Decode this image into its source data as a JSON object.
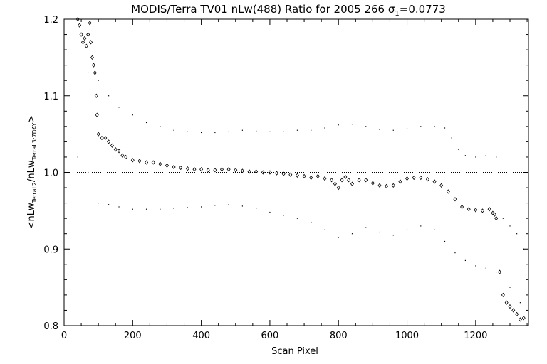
{
  "chart_data": {
    "type": "scatter",
    "title": "MODIS/Terra TV01 nLw(488) Ratio for 2005 266 σ",
    "title_subscript": "1",
    "title_suffix": "=0.0773",
    "xlabel": "Scan Pixel",
    "ylabel": {
      "open": "<",
      "nlw": "nLw",
      "sub1": "TerraL2",
      "slash": "/",
      "sub2": "TerraL3:7DAY",
      "close": ">"
    },
    "xlim": [
      0,
      1354
    ],
    "ylim": [
      0.8,
      1.2
    ],
    "xticks": [
      "0",
      "200",
      "400",
      "600",
      "800",
      "1000",
      "1200"
    ],
    "xtick_values": [
      0,
      200,
      400,
      600,
      800,
      1000,
      1200
    ],
    "yticks": [
      "0.8",
      "0.9",
      "1.0",
      "1.1",
      "1.2"
    ],
    "ytick_values": [
      0.8,
      0.9,
      1.0,
      1.1,
      1.2
    ],
    "reference_line": 1.0,
    "grid": false,
    "series": [
      {
        "style": "diamond",
        "points": [
          [
            40,
            1.2
          ],
          [
            45,
            1.192
          ],
          [
            50,
            1.18
          ],
          [
            55,
            1.17
          ],
          [
            60,
            1.175
          ],
          [
            65,
            1.165
          ],
          [
            70,
            1.18
          ],
          [
            75,
            1.195
          ],
          [
            78,
            1.17
          ],
          [
            82,
            1.15
          ],
          [
            86,
            1.14
          ],
          [
            90,
            1.13
          ],
          [
            94,
            1.1
          ],
          [
            96,
            1.075
          ],
          [
            100,
            1.05
          ],
          [
            110,
            1.045
          ],
          [
            120,
            1.045
          ],
          [
            130,
            1.04
          ],
          [
            140,
            1.035
          ],
          [
            150,
            1.03
          ],
          [
            160,
            1.028
          ],
          [
            170,
            1.022
          ],
          [
            180,
            1.02
          ],
          [
            200,
            1.016
          ],
          [
            220,
            1.015
          ],
          [
            240,
            1.013
          ],
          [
            260,
            1.013
          ],
          [
            280,
            1.011
          ],
          [
            300,
            1.009
          ],
          [
            320,
            1.007
          ],
          [
            340,
            1.006
          ],
          [
            360,
            1.005
          ],
          [
            380,
            1.004
          ],
          [
            400,
            1.004
          ],
          [
            420,
            1.003
          ],
          [
            440,
            1.003
          ],
          [
            460,
            1.004
          ],
          [
            480,
            1.004
          ],
          [
            500,
            1.003
          ],
          [
            520,
            1.002
          ],
          [
            540,
            1.001
          ],
          [
            560,
            1.001
          ],
          [
            580,
            1.0
          ],
          [
            600,
            1.0
          ],
          [
            620,
            0.999
          ],
          [
            640,
            0.998
          ],
          [
            660,
            0.997
          ],
          [
            680,
            0.996
          ],
          [
            700,
            0.995
          ],
          [
            720,
            0.993
          ],
          [
            740,
            0.995
          ],
          [
            760,
            0.992
          ],
          [
            780,
            0.99
          ],
          [
            790,
            0.985
          ],
          [
            800,
            0.98
          ],
          [
            810,
            0.99
          ],
          [
            820,
            0.994
          ],
          [
            830,
            0.99
          ],
          [
            840,
            0.985
          ],
          [
            860,
            0.99
          ],
          [
            880,
            0.99
          ],
          [
            900,
            0.986
          ],
          [
            920,
            0.983
          ],
          [
            940,
            0.982
          ],
          [
            960,
            0.983
          ],
          [
            980,
            0.988
          ],
          [
            1000,
            0.992
          ],
          [
            1020,
            0.993
          ],
          [
            1040,
            0.993
          ],
          [
            1060,
            0.991
          ],
          [
            1080,
            0.988
          ],
          [
            1100,
            0.983
          ],
          [
            1120,
            0.975
          ],
          [
            1140,
            0.965
          ],
          [
            1160,
            0.955
          ],
          [
            1180,
            0.952
          ],
          [
            1200,
            0.951
          ],
          [
            1220,
            0.95
          ],
          [
            1240,
            0.952
          ],
          [
            1250,
            0.947
          ],
          [
            1255,
            0.945
          ],
          [
            1260,
            0.94
          ],
          [
            1270,
            0.87
          ],
          [
            1280,
            0.84
          ],
          [
            1290,
            0.83
          ],
          [
            1300,
            0.825
          ],
          [
            1310,
            0.82
          ],
          [
            1320,
            0.815
          ],
          [
            1330,
            0.808
          ],
          [
            1340,
            0.81
          ]
        ]
      },
      {
        "style": "dot",
        "points": [
          [
            70,
            1.13
          ],
          [
            100,
            1.12
          ],
          [
            130,
            1.1
          ],
          [
            160,
            1.085
          ],
          [
            200,
            1.075
          ],
          [
            240,
            1.065
          ],
          [
            280,
            1.06
          ],
          [
            320,
            1.055
          ],
          [
            360,
            1.053
          ],
          [
            400,
            1.052
          ],
          [
            440,
            1.052
          ],
          [
            480,
            1.053
          ],
          [
            520,
            1.055
          ],
          [
            560,
            1.054
          ],
          [
            600,
            1.053
          ],
          [
            640,
            1.053
          ],
          [
            680,
            1.055
          ],
          [
            720,
            1.055
          ],
          [
            760,
            1.058
          ],
          [
            800,
            1.062
          ],
          [
            840,
            1.063
          ],
          [
            880,
            1.06
          ],
          [
            920,
            1.056
          ],
          [
            960,
            1.055
          ],
          [
            1000,
            1.057
          ],
          [
            1040,
            1.06
          ],
          [
            1080,
            1.06
          ],
          [
            1110,
            1.058
          ],
          [
            1130,
            1.045
          ],
          [
            1150,
            1.03
          ],
          [
            1170,
            1.022
          ],
          [
            1200,
            1.02
          ],
          [
            1230,
            1.022
          ],
          [
            1260,
            1.02
          ],
          [
            1280,
            0.94
          ],
          [
            1300,
            0.93
          ],
          [
            1320,
            0.92
          ],
          [
            1340,
            0.9
          ]
        ]
      },
      {
        "style": "dot",
        "points": [
          [
            40,
            1.02
          ],
          [
            70,
            1.0
          ],
          [
            100,
            0.96
          ],
          [
            130,
            0.958
          ],
          [
            160,
            0.955
          ],
          [
            200,
            0.952
          ],
          [
            240,
            0.952
          ],
          [
            280,
            0.952
          ],
          [
            320,
            0.953
          ],
          [
            360,
            0.954
          ],
          [
            400,
            0.955
          ],
          [
            440,
            0.957
          ],
          [
            480,
            0.958
          ],
          [
            520,
            0.956
          ],
          [
            560,
            0.953
          ],
          [
            600,
            0.948
          ],
          [
            640,
            0.944
          ],
          [
            680,
            0.94
          ],
          [
            720,
            0.935
          ],
          [
            760,
            0.925
          ],
          [
            800,
            0.915
          ],
          [
            840,
            0.92
          ],
          [
            880,
            0.928
          ],
          [
            920,
            0.922
          ],
          [
            960,
            0.918
          ],
          [
            1000,
            0.925
          ],
          [
            1040,
            0.93
          ],
          [
            1080,
            0.925
          ],
          [
            1110,
            0.91
          ],
          [
            1140,
            0.895
          ],
          [
            1170,
            0.885
          ],
          [
            1200,
            0.878
          ],
          [
            1230,
            0.875
          ],
          [
            1260,
            0.87
          ],
          [
            1300,
            0.85
          ],
          [
            1330,
            0.83
          ]
        ]
      }
    ]
  }
}
